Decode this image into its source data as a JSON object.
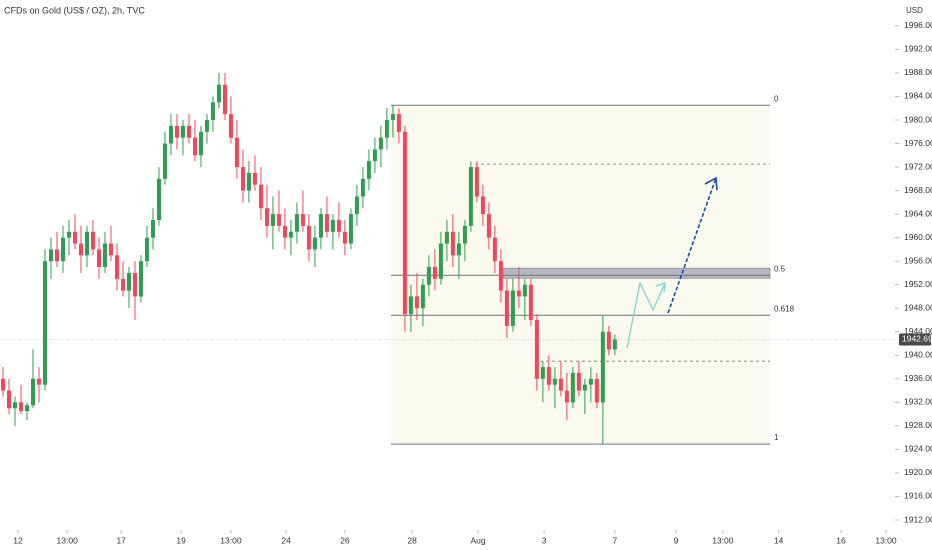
{
  "chart_data": {
    "type": "candlestick",
    "title": "CFDs on Gold (US$ / OZ), 2h, TVC",
    "currency": "USD",
    "up_color": "#2e9e4f",
    "down_color": "#f0475a",
    "grid": false,
    "last_price": {
      "value": 1942.69,
      "label": "1942.69"
    },
    "ylim": [
      1910.3,
      2000.4
    ],
    "yticks": [
      {
        "value": 1912,
        "label": "1912.00"
      },
      {
        "value": 1916,
        "label": "1916.00"
      },
      {
        "value": 1920,
        "label": "1920.00"
      },
      {
        "value": 1924,
        "label": "1924.00"
      },
      {
        "value": 1928,
        "label": "1928.00"
      },
      {
        "value": 1932,
        "label": "1932.00"
      },
      {
        "value": 1936,
        "label": "1936.00"
      },
      {
        "value": 1940,
        "label": "1940.00"
      },
      {
        "value": 1944,
        "label": "1944.00"
      },
      {
        "value": 1948,
        "label": "1948.00"
      },
      {
        "value": 1952,
        "label": "1952.00"
      },
      {
        "value": 1956,
        "label": "1956.00"
      },
      {
        "value": 1960,
        "label": "1960.00"
      },
      {
        "value": 1964,
        "label": "1964.00"
      },
      {
        "value": 1968,
        "label": "1968.00"
      },
      {
        "value": 1972,
        "label": "1972.00"
      },
      {
        "value": 1976,
        "label": "1976.00"
      },
      {
        "value": 1980,
        "label": "1980.00"
      },
      {
        "value": 1984,
        "label": "1984.00"
      },
      {
        "value": 1988,
        "label": "1988.00"
      },
      {
        "value": 1992,
        "label": "1992.00"
      },
      {
        "value": 1996,
        "label": "1996.00"
      }
    ],
    "xlim": [
      -0.5,
      148.7
    ],
    "xticks": [
      {
        "value": 2.5,
        "label": "12"
      },
      {
        "value": 10.7,
        "label": "13:00"
      },
      {
        "value": 19.7,
        "label": "17"
      },
      {
        "value": 29.7,
        "label": "19"
      },
      {
        "value": 38,
        "label": "13:00"
      },
      {
        "value": 47.2,
        "label": "24"
      },
      {
        "value": 57,
        "label": "26"
      },
      {
        "value": 68.2,
        "label": "28"
      },
      {
        "value": 79.2,
        "label": "Aug"
      },
      {
        "value": 90.2,
        "label": "3"
      },
      {
        "value": 102,
        "label": "7"
      },
      {
        "value": 112.2,
        "label": "9"
      },
      {
        "value": 120,
        "label": "13:00"
      },
      {
        "value": 129.3,
        "label": "14"
      },
      {
        "value": 139.7,
        "label": "16"
      },
      {
        "value": 147.2,
        "label": "13:00"
      }
    ],
    "fib_levels": [
      {
        "label": "0",
        "price": 1982.5
      },
      {
        "label": "0.5",
        "price": 1953.6
      },
      {
        "label": "0.618",
        "price": 1946.8
      },
      {
        "label": "1",
        "price": 1924.9
      }
    ],
    "zone": {
      "low": 1953.1,
      "high": 1954.8
    },
    "dashed_levels": [
      1972.5,
      1939
    ],
    "candles": [
      [
        1936,
        1938,
        1933,
        1934
      ],
      [
        1934,
        1936,
        1930,
        1931
      ],
      [
        1931,
        1933,
        1928,
        1932
      ],
      [
        1932,
        1935,
        1930,
        1930.5
      ],
      [
        1930.5,
        1932,
        1929,
        1931.5
      ],
      [
        1931.5,
        1941,
        1931,
        1936
      ],
      [
        1936,
        1938,
        1932,
        1935
      ],
      [
        1935,
        1958,
        1934,
        1956
      ],
      [
        1956,
        1960,
        1953,
        1958
      ],
      [
        1958,
        1961,
        1955,
        1956
      ],
      [
        1956,
        1962,
        1954,
        1960
      ],
      [
        1960,
        1963,
        1957,
        1961
      ],
      [
        1961,
        1964,
        1958,
        1959
      ],
      [
        1959,
        1962,
        1954,
        1957
      ],
      [
        1957,
        1962,
        1955,
        1961
      ],
      [
        1961,
        1963,
        1957,
        1958
      ],
      [
        1958,
        1960,
        1953,
        1955
      ],
      [
        1955,
        1961,
        1954,
        1959
      ],
      [
        1959,
        1962,
        1956,
        1957
      ],
      [
        1957,
        1959,
        1951,
        1953
      ],
      [
        1953,
        1956,
        1950,
        1951
      ],
      [
        1951,
        1955,
        1948,
        1954
      ],
      [
        1954,
        1956,
        1946,
        1950
      ],
      [
        1950,
        1957,
        1949,
        1956
      ],
      [
        1956,
        1962,
        1955,
        1960
      ],
      [
        1960,
        1965,
        1958,
        1963
      ],
      [
        1963,
        1972,
        1962,
        1970
      ],
      [
        1970,
        1978,
        1969,
        1976
      ],
      [
        1976,
        1981,
        1974,
        1979
      ],
      [
        1979,
        1981,
        1975,
        1977
      ],
      [
        1977,
        1980,
        1974,
        1979
      ],
      [
        1979,
        1981,
        1976,
        1977
      ],
      [
        1977,
        1980,
        1973,
        1974
      ],
      [
        1974,
        1979,
        1972,
        1978
      ],
      [
        1978,
        1981,
        1976,
        1980
      ],
      [
        1980,
        1984,
        1978,
        1983
      ],
      [
        1983,
        1988,
        1982,
        1986
      ],
      [
        1986,
        1988,
        1980,
        1981
      ],
      [
        1981,
        1984,
        1976,
        1977
      ],
      [
        1977,
        1980,
        1970,
        1972
      ],
      [
        1972,
        1975,
        1966,
        1968
      ],
      [
        1968,
        1973,
        1966,
        1971
      ],
      [
        1971,
        1974,
        1968,
        1969
      ],
      [
        1969,
        1972,
        1963,
        1965
      ],
      [
        1965,
        1969,
        1960,
        1962
      ],
      [
        1962,
        1967,
        1958,
        1964
      ],
      [
        1964,
        1968,
        1961,
        1962
      ],
      [
        1962,
        1965,
        1958,
        1960
      ],
      [
        1960,
        1963,
        1957,
        1961
      ],
      [
        1961,
        1966,
        1959,
        1964
      ],
      [
        1964,
        1968,
        1961,
        1962
      ],
      [
        1962,
        1964,
        1956,
        1958
      ],
      [
        1958,
        1962,
        1955,
        1960
      ],
      [
        1960,
        1965,
        1958,
        1964
      ],
      [
        1964,
        1967,
        1960,
        1961
      ],
      [
        1961,
        1964,
        1958,
        1963
      ],
      [
        1963,
        1966,
        1960,
        1961
      ],
      [
        1961,
        1963,
        1957,
        1959
      ],
      [
        1959,
        1965,
        1958,
        1964
      ],
      [
        1964,
        1969,
        1962,
        1967
      ],
      [
        1967,
        1972,
        1965,
        1970
      ],
      [
        1970,
        1975,
        1968,
        1973
      ],
      [
        1973,
        1977,
        1971,
        1975
      ],
      [
        1975,
        1979,
        1972,
        1977
      ],
      [
        1977,
        1982,
        1975,
        1980
      ],
      [
        1980,
        1982.5,
        1977,
        1981
      ],
      [
        1981,
        1982,
        1976,
        1978
      ],
      [
        1978,
        1979,
        1944,
        1947
      ],
      [
        1947,
        1952,
        1944,
        1950
      ],
      [
        1950,
        1954,
        1946,
        1948
      ],
      [
        1948,
        1953,
        1945,
        1952
      ],
      [
        1952,
        1957,
        1950,
        1955
      ],
      [
        1955,
        1958,
        1951,
        1953
      ],
      [
        1953,
        1961,
        1952,
        1959
      ],
      [
        1959,
        1963,
        1956,
        1961
      ],
      [
        1961,
        1964,
        1955,
        1957
      ],
      [
        1957,
        1961,
        1953,
        1959
      ],
      [
        1959,
        1963,
        1956,
        1962
      ],
      [
        1962,
        1973,
        1961,
        1972
      ],
      [
        1972,
        1973,
        1966,
        1967
      ],
      [
        1967,
        1969,
        1962,
        1964
      ],
      [
        1964,
        1966,
        1958,
        1960
      ],
      [
        1960,
        1962,
        1954,
        1956
      ],
      [
        1956,
        1958,
        1949,
        1951
      ],
      [
        1951,
        1953,
        1943,
        1945
      ],
      [
        1945,
        1953,
        1944,
        1951
      ],
      [
        1951,
        1955,
        1948,
        1950
      ],
      [
        1950,
        1953,
        1946,
        1952
      ],
      [
        1952,
        1953,
        1945,
        1946
      ],
      [
        1946,
        1947,
        1934,
        1936
      ],
      [
        1936,
        1939,
        1932,
        1938
      ],
      [
        1938,
        1940,
        1934,
        1935
      ],
      [
        1935,
        1938,
        1931,
        1936
      ],
      [
        1936,
        1939,
        1933,
        1934
      ],
      [
        1934,
        1937,
        1929,
        1932
      ],
      [
        1932,
        1938,
        1931,
        1937
      ],
      [
        1937,
        1939,
        1933,
        1934
      ],
      [
        1934,
        1936,
        1930,
        1935
      ],
      [
        1935,
        1938,
        1932,
        1936
      ],
      [
        1936,
        1937,
        1931,
        1932
      ],
      [
        1932,
        1946.8,
        1925,
        1944
      ],
      [
        1944,
        1945,
        1940,
        1941
      ],
      [
        1941,
        1943.5,
        1940,
        1942.69
      ]
    ]
  }
}
